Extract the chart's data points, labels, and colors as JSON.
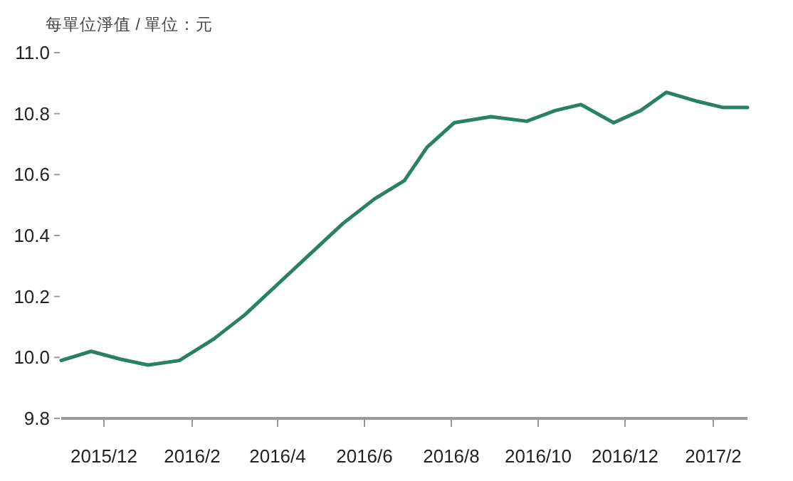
{
  "chart_data": {
    "type": "line",
    "ylabel": "每單位淨值 / 單位：元",
    "x": [
      "2015-11-01",
      "2015-11-22",
      "2015-12-12",
      "2016-01-01",
      "2016-01-23",
      "2016-02-16",
      "2016-03-09",
      "2016-04-01",
      "2016-04-24",
      "2016-05-17",
      "2016-06-08",
      "2016-06-29",
      "2016-07-15",
      "2016-08-03",
      "2016-08-29",
      "2016-09-23",
      "2016-10-13",
      "2016-10-31",
      "2016-11-23",
      "2016-12-12",
      "2016-12-30",
      "2017-01-21",
      "2017-02-08",
      "2017-02-25"
    ],
    "series": [
      {
        "color": "#2a8066",
        "values": [
          9.99,
          10.02,
          9.995,
          9.975,
          9.99,
          10.06,
          10.14,
          10.24,
          10.34,
          10.44,
          10.52,
          10.58,
          10.69,
          10.77,
          10.79,
          10.775,
          10.81,
          10.83,
          10.77,
          10.81,
          10.87,
          10.84,
          10.82,
          10.82
        ]
      }
    ],
    "xlim": [
      "2015-11-01",
      "2017-02-25"
    ],
    "xticks": [
      {
        "value": "2015-12-01",
        "label": "2015/12"
      },
      {
        "value": "2016-02-01",
        "label": "2016/2"
      },
      {
        "value": "2016-04-01",
        "label": "2016/4"
      },
      {
        "value": "2016-06-01",
        "label": "2016/6"
      },
      {
        "value": "2016-08-01",
        "label": "2016/8"
      },
      {
        "value": "2016-10-01",
        "label": "2016/10"
      },
      {
        "value": "2016-12-01",
        "label": "2016/12"
      },
      {
        "value": "2017-02-01",
        "label": "2017/2"
      }
    ],
    "ylim": [
      9.8,
      11.0
    ],
    "yticks": [
      {
        "value": 9.8,
        "label": "9.8"
      },
      {
        "value": 10.0,
        "label": "10.0"
      },
      {
        "value": 10.2,
        "label": "10.2"
      },
      {
        "value": 10.4,
        "label": "10.4"
      },
      {
        "value": 10.6,
        "label": "10.6"
      },
      {
        "value": 10.8,
        "label": "10.8"
      },
      {
        "value": 11.0,
        "label": "11.0"
      }
    ],
    "grid": false,
    "marker": "none",
    "line_style": "solid"
  }
}
